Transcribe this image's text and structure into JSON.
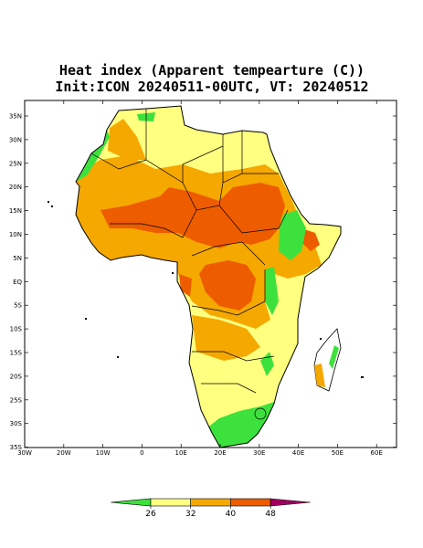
{
  "title": "Heat index (Apparent tempearture (C))",
  "subtitle": "Init:ICON 20240511-00UTC, VT: 20240512",
  "map": {
    "lat_ticks": [
      "35N",
      "30N",
      "25N",
      "20N",
      "15N",
      "10N",
      "5N",
      "EQ",
      "5S",
      "10S",
      "15S",
      "20S",
      "25S",
      "30S",
      "35S"
    ],
    "lon_ticks": [
      "30W",
      "20W",
      "10W",
      "0",
      "10E",
      "20E",
      "30E",
      "40E",
      "50E",
      "60E"
    ]
  },
  "colorbar": {
    "levels": [
      26,
      32,
      40,
      48
    ],
    "colors": [
      "#3de13d",
      "#ffff80",
      "#f5a800",
      "#ee5c00",
      "#a00060"
    ]
  }
}
